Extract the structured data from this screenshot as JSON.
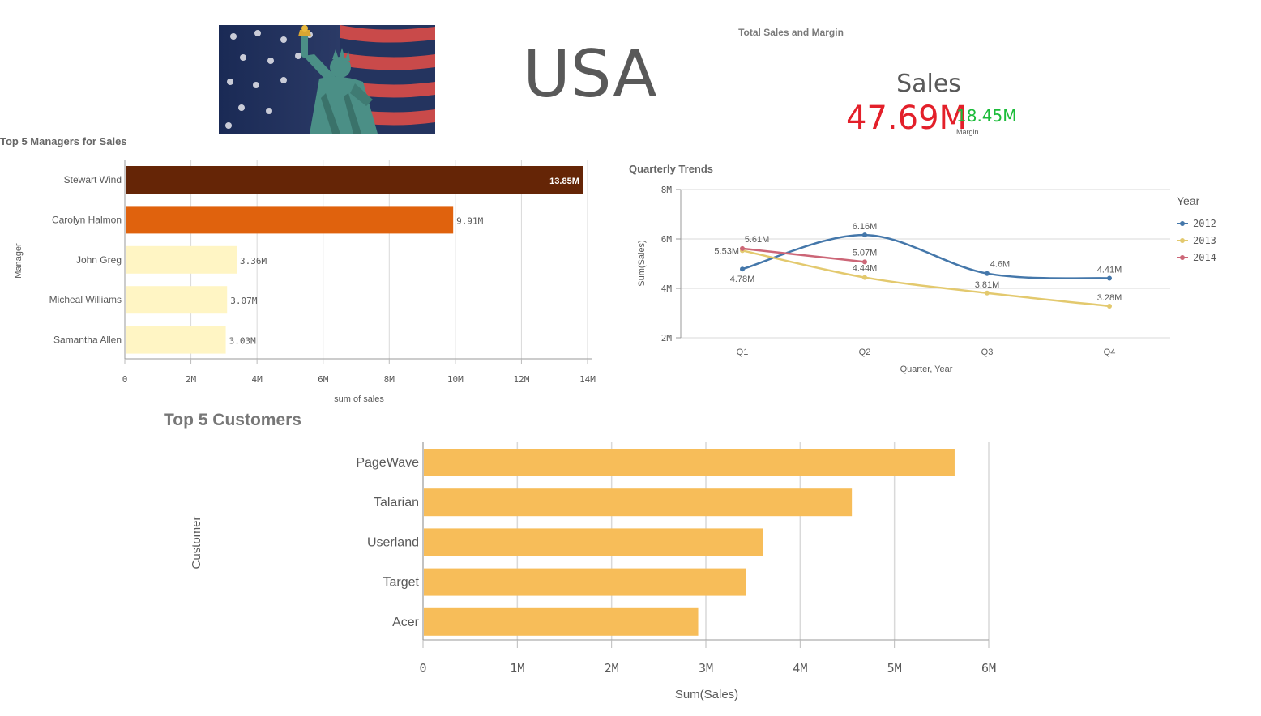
{
  "header": {
    "country": "USA"
  },
  "kpi": {
    "title": "Total Sales and Margin",
    "label": "Sales",
    "value": "47.69M",
    "secondary_value": "18.45M",
    "secondary_label": "Margin",
    "colors": {
      "value": "#e3202a",
      "secondary": "#1cbc3a"
    }
  },
  "chart_data": [
    {
      "id": "managers",
      "type": "bar",
      "orientation": "horizontal",
      "title": "Top 5 Managers for Sales",
      "xlabel": "sum of sales",
      "ylabel": "Manager",
      "categories": [
        "Stewart Wind",
        "Carolyn Halmon",
        "John Greg",
        "Micheal Williams",
        "Samantha Allen"
      ],
      "values": [
        13.85,
        9.91,
        3.36,
        3.07,
        3.03
      ],
      "labels": [
        "13.85M",
        "9.91M",
        "3.36M",
        "3.07M",
        "3.03M"
      ],
      "colors": [
        "#652506",
        "#e0620d",
        "#fff5c4",
        "#fff5c4",
        "#fff5c4"
      ],
      "xlim": [
        0,
        14
      ],
      "ticks": [
        0,
        2,
        4,
        6,
        8,
        10,
        12,
        14
      ],
      "tick_labels": [
        "0",
        "2M",
        "4M",
        "6M",
        "8M",
        "10M",
        "12M",
        "14M"
      ],
      "grid": true
    },
    {
      "id": "quarterly",
      "type": "line",
      "title": "Quarterly Trends",
      "xlabel": "Quarter, Year",
      "ylabel": "Sum(Sales)",
      "categories": [
        "Q1",
        "Q2",
        "Q3",
        "Q4"
      ],
      "ylim": [
        2,
        8
      ],
      "yticks": [
        2,
        4,
        6,
        8
      ],
      "ytick_labels": [
        "2M",
        "4M",
        "6M",
        "8M"
      ],
      "legend_title": "Year",
      "legend_position": "right",
      "grid": true,
      "series": [
        {
          "name": "2012",
          "color": "#4477aa",
          "values": [
            4.78,
            6.16,
            4.6,
            4.41
          ],
          "labels": [
            "4.78M",
            "6.16M",
            "4.6M",
            "4.41M"
          ]
        },
        {
          "name": "2013",
          "color": "#e3c96e",
          "values": [
            5.53,
            4.44,
            3.81,
            3.28
          ],
          "labels": [
            "5.53M",
            "4.44M",
            "3.81M",
            "3.28M"
          ]
        },
        {
          "name": "2014",
          "color": "#cc6677",
          "values": [
            5.61,
            5.07,
            null,
            null
          ],
          "labels": [
            "5.61M",
            "5.07M",
            "",
            ""
          ]
        }
      ]
    },
    {
      "id": "customers",
      "type": "bar",
      "orientation": "horizontal",
      "title": "Top 5 Customers",
      "xlabel": "Sum(Sales)",
      "ylabel": "Customer",
      "categories": [
        "PageWave",
        "Talarian",
        "Userland",
        "Target",
        "Acer"
      ],
      "values": [
        5.63,
        4.54,
        3.6,
        3.42,
        2.91
      ],
      "color": "#f7bd59",
      "xlim": [
        0,
        6
      ],
      "ticks": [
        0,
        1,
        2,
        3,
        4,
        5,
        6
      ],
      "tick_labels": [
        "0",
        "1M",
        "2M",
        "3M",
        "4M",
        "5M",
        "6M"
      ],
      "grid": true
    }
  ]
}
